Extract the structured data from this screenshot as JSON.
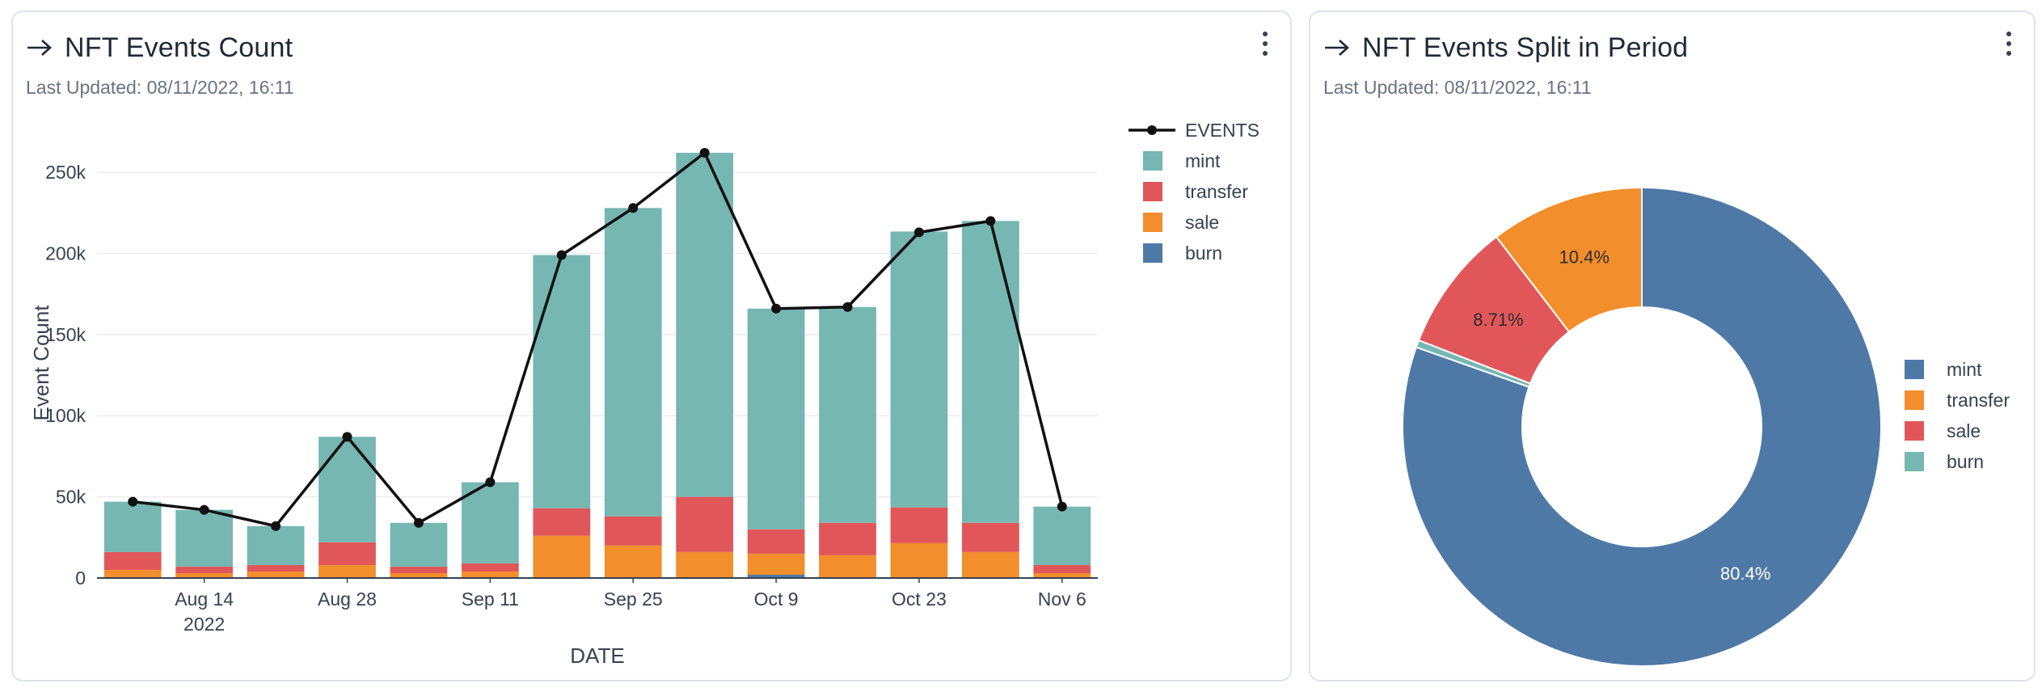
{
  "panels": {
    "left": {
      "title": "NFT Events Count",
      "last_updated": "Last Updated: 08/11/2022, 16:11",
      "menu_icon": "kebab-menu-icon",
      "title_icon": "arrow-right-icon"
    },
    "right": {
      "title": "NFT Events Split in Period",
      "last_updated": "Last Updated: 08/11/2022, 16:11",
      "menu_icon": "kebab-menu-icon",
      "title_icon": "arrow-right-icon"
    }
  },
  "chart_data": [
    {
      "type": "bar",
      "stacked": true,
      "xlabel": "DATE",
      "ylabel": "Event Count",
      "ylim": [
        0,
        265000
      ],
      "yticks": [
        0,
        50000,
        100000,
        150000,
        200000,
        250000
      ],
      "ytick_labels": [
        "0",
        "50k",
        "100k",
        "150k",
        "200k",
        "250k"
      ],
      "x_dates": [
        "2022-08-07",
        "2022-08-14",
        "2022-08-21",
        "2022-08-28",
        "2022-09-04",
        "2022-09-11",
        "2022-09-18",
        "2022-09-25",
        "2022-10-02",
        "2022-10-09",
        "2022-10-16",
        "2022-10-23",
        "2022-10-30",
        "2022-11-06"
      ],
      "xticks": [
        {
          "date": "2022-08-14",
          "label": "Aug 14",
          "sub": "2022"
        },
        {
          "date": "2022-08-28",
          "label": "Aug 28",
          "sub": ""
        },
        {
          "date": "2022-09-11",
          "label": "Sep 11",
          "sub": ""
        },
        {
          "date": "2022-09-25",
          "label": "Sep 25",
          "sub": ""
        },
        {
          "date": "2022-10-09",
          "label": "Oct 9",
          "sub": ""
        },
        {
          "date": "2022-10-23",
          "label": "Oct 23",
          "sub": ""
        },
        {
          "date": "2022-11-06",
          "label": "Nov 6",
          "sub": ""
        }
      ],
      "series": [
        {
          "name": "burn",
          "color": "#4e79a7",
          "values": [
            0,
            0,
            0,
            0,
            0,
            0,
            0,
            0,
            0,
            2000,
            0,
            500,
            0,
            0
          ]
        },
        {
          "name": "sale",
          "color": "#f28e2b",
          "values": [
            5000,
            3000,
            4000,
            8000,
            3000,
            4000,
            26000,
            20000,
            16000,
            13000,
            14000,
            21000,
            16000,
            3000
          ]
        },
        {
          "name": "transfer",
          "color": "#e15759",
          "values": [
            11000,
            4000,
            4000,
            14000,
            4000,
            5000,
            17000,
            18000,
            34000,
            15000,
            20000,
            22000,
            18000,
            5000
          ]
        },
        {
          "name": "mint",
          "color": "#76b7b2",
          "values": [
            31000,
            35000,
            24000,
            65000,
            27000,
            50000,
            156000,
            190000,
            212000,
            136000,
            133000,
            170000,
            186000,
            36000
          ]
        }
      ],
      "line": {
        "name": "EVENTS",
        "color": "#111111",
        "values": [
          47000,
          42000,
          32000,
          87000,
          34000,
          59000,
          199000,
          228000,
          262000,
          166000,
          167000,
          213000,
          220000,
          44000
        ]
      },
      "legend": [
        "EVENTS",
        "mint",
        "transfer",
        "sale",
        "burn"
      ],
      "legend_position": "top-right",
      "grid": true
    },
    {
      "type": "pie",
      "donut": true,
      "slices": [
        {
          "name": "mint",
          "value": 80.4,
          "label": "80.4%",
          "color": "#4e79a7"
        },
        {
          "name": "burn",
          "value": 0.49,
          "label": "",
          "color": "#76b7b2"
        },
        {
          "name": "sale",
          "value": 8.71,
          "label": "8.71%",
          "color": "#e15759"
        },
        {
          "name": "transfer",
          "value": 10.4,
          "label": "10.4%",
          "color": "#f28e2b"
        }
      ],
      "legend": [
        {
          "name": "mint",
          "color": "#4e79a7"
        },
        {
          "name": "transfer",
          "color": "#f28e2b"
        },
        {
          "name": "sale",
          "color": "#e15759"
        },
        {
          "name": "burn",
          "color": "#76b7b2"
        }
      ],
      "legend_position": "right"
    }
  ]
}
